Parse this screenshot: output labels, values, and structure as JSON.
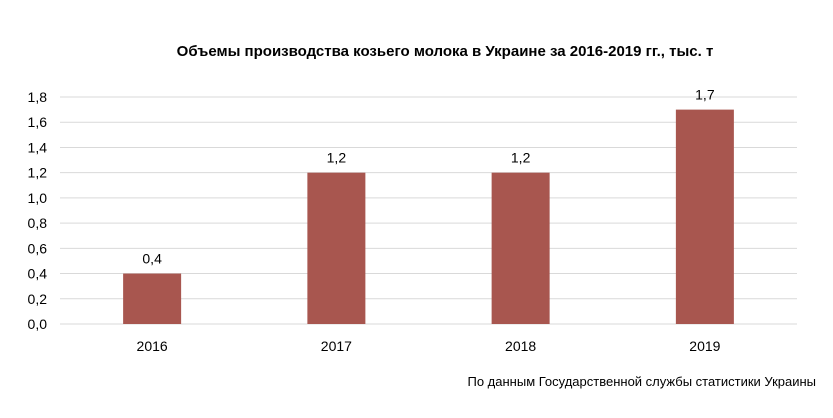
{
  "chart_data": {
    "type": "bar",
    "title": "Объемы производства козьего молока в Украине за 2016-2019 гг., тыс. т",
    "categories": [
      "2016",
      "2017",
      "2018",
      "2019"
    ],
    "values": [
      0.4,
      1.2,
      1.2,
      1.7
    ],
    "data_labels": [
      "0,4",
      "1,2",
      "1,2",
      "1,7"
    ],
    "xlabel": "",
    "ylabel": "",
    "ylim": [
      0,
      1.8
    ],
    "y_ticks": [
      "0,0",
      "0,2",
      "0,4",
      "0,6",
      "0,8",
      "1,0",
      "1,2",
      "1,4",
      "1,6",
      "1,8"
    ],
    "grid": true,
    "legend": "none",
    "bar_color": "#a8564f",
    "grid_color": "#d9d9d9"
  },
  "source": "По данным Государственной службы статистики Украины"
}
